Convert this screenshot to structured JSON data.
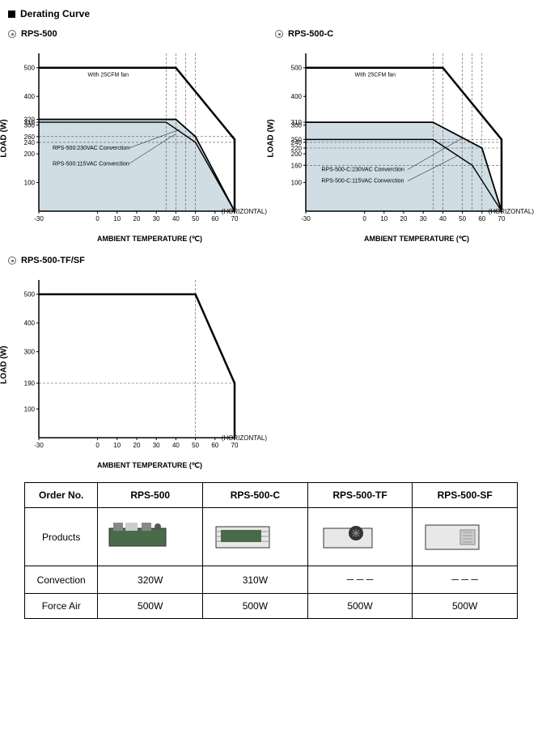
{
  "header": {
    "title": "Derating Curve"
  },
  "axis": {
    "y_label": "LOAD (W)",
    "x_label": "AMBIENT TEMPERATURE (℃)",
    "horizontal": "(HORIZONTAL)"
  },
  "chart1": {
    "title": "RPS-500",
    "fan_label": "With 25CFM fan",
    "line230": "RPS-500:230VAC Converction",
    "line115": "RPS-500:115VAC Converction",
    "y_ticks": [
      100,
      200,
      240,
      260,
      300,
      310,
      320,
      400,
      500
    ],
    "x_ticks": [
      -30,
      0,
      10,
      20,
      30,
      40,
      50,
      60,
      70
    ],
    "fan_curve": [
      [
        -30,
        500
      ],
      [
        40,
        500
      ],
      [
        70,
        250
      ],
      [
        70,
        0
      ]
    ],
    "conv320_curve": [
      [
        -30,
        320
      ],
      [
        40,
        320
      ],
      [
        50,
        260
      ],
      [
        70,
        0
      ]
    ],
    "conv310_curve": [
      [
        -30,
        310
      ],
      [
        35,
        310
      ],
      [
        50,
        240
      ],
      [
        70,
        0
      ]
    ],
    "shade_region": [
      [
        -30,
        320
      ],
      [
        40,
        320
      ],
      [
        50,
        260
      ],
      [
        70,
        0
      ],
      [
        70,
        0
      ],
      [
        -30,
        0
      ]
    ],
    "dashed_h": [
      260,
      240
    ],
    "dashed_v": [
      35,
      40,
      45,
      50
    ],
    "background_color": "#ffffff",
    "grid_color": "#666666",
    "shade_color": "#d0dde5",
    "line_color": "#000000",
    "line_width_outer": 2.5,
    "line_width_inner": 1.5,
    "y_max": 550,
    "y_min": 0,
    "x_min": -30,
    "x_max": 70
  },
  "chart2": {
    "title": "RPS-500-C",
    "fan_label": "With 25CFM fan",
    "line230": "RPS-500-C:230VAC Converction",
    "line115": "RPS-500-C:115VAC Converction",
    "y_ticks": [
      100,
      160,
      200,
      220,
      240,
      250,
      300,
      310,
      400,
      500
    ],
    "x_ticks": [
      -30,
      0,
      10,
      20,
      30,
      40,
      50,
      60,
      70
    ],
    "fan_curve": [
      [
        -30,
        500
      ],
      [
        40,
        500
      ],
      [
        70,
        250
      ],
      [
        70,
        0
      ]
    ],
    "conv310_curve": [
      [
        -30,
        310
      ],
      [
        35,
        310
      ],
      [
        60,
        220
      ],
      [
        70,
        0
      ]
    ],
    "conv250_curve": [
      [
        -30,
        250
      ],
      [
        35,
        250
      ],
      [
        55,
        160
      ],
      [
        70,
        0
      ]
    ],
    "shade_region": [
      [
        -30,
        310
      ],
      [
        35,
        310
      ],
      [
        60,
        220
      ],
      [
        70,
        0
      ],
      [
        70,
        0
      ],
      [
        -30,
        0
      ]
    ],
    "dashed_h": [
      250,
      240,
      220,
      160
    ],
    "dashed_v": [
      35,
      40,
      50,
      55,
      60
    ],
    "shade_color": "#d0dde5",
    "line_color": "#000000"
  },
  "chart3": {
    "title": "RPS-500-TF/SF",
    "y_ticks": [
      100,
      190,
      300,
      400,
      500
    ],
    "x_ticks": [
      -30,
      0,
      10,
      20,
      30,
      40,
      50,
      60,
      70
    ],
    "curve": [
      [
        -30,
        500
      ],
      [
        50,
        500
      ],
      [
        70,
        190
      ],
      [
        70,
        0
      ]
    ],
    "dashed_h": [
      190
    ],
    "dashed_v": [
      50
    ],
    "shade_color": "none",
    "line_color": "#000000",
    "line_width": 2.5
  },
  "table": {
    "headers": [
      "Order No.",
      "RPS-500",
      "RPS-500-C",
      "RPS-500-TF",
      "RPS-500-SF"
    ],
    "row_products_label": "Products",
    "rows": [
      {
        "label": "Convection",
        "cells": [
          "320W",
          "310W",
          "－－－",
          "－－－"
        ]
      },
      {
        "label": "Force Air",
        "cells": [
          "500W",
          "500W",
          "500W",
          "500W"
        ]
      }
    ]
  }
}
